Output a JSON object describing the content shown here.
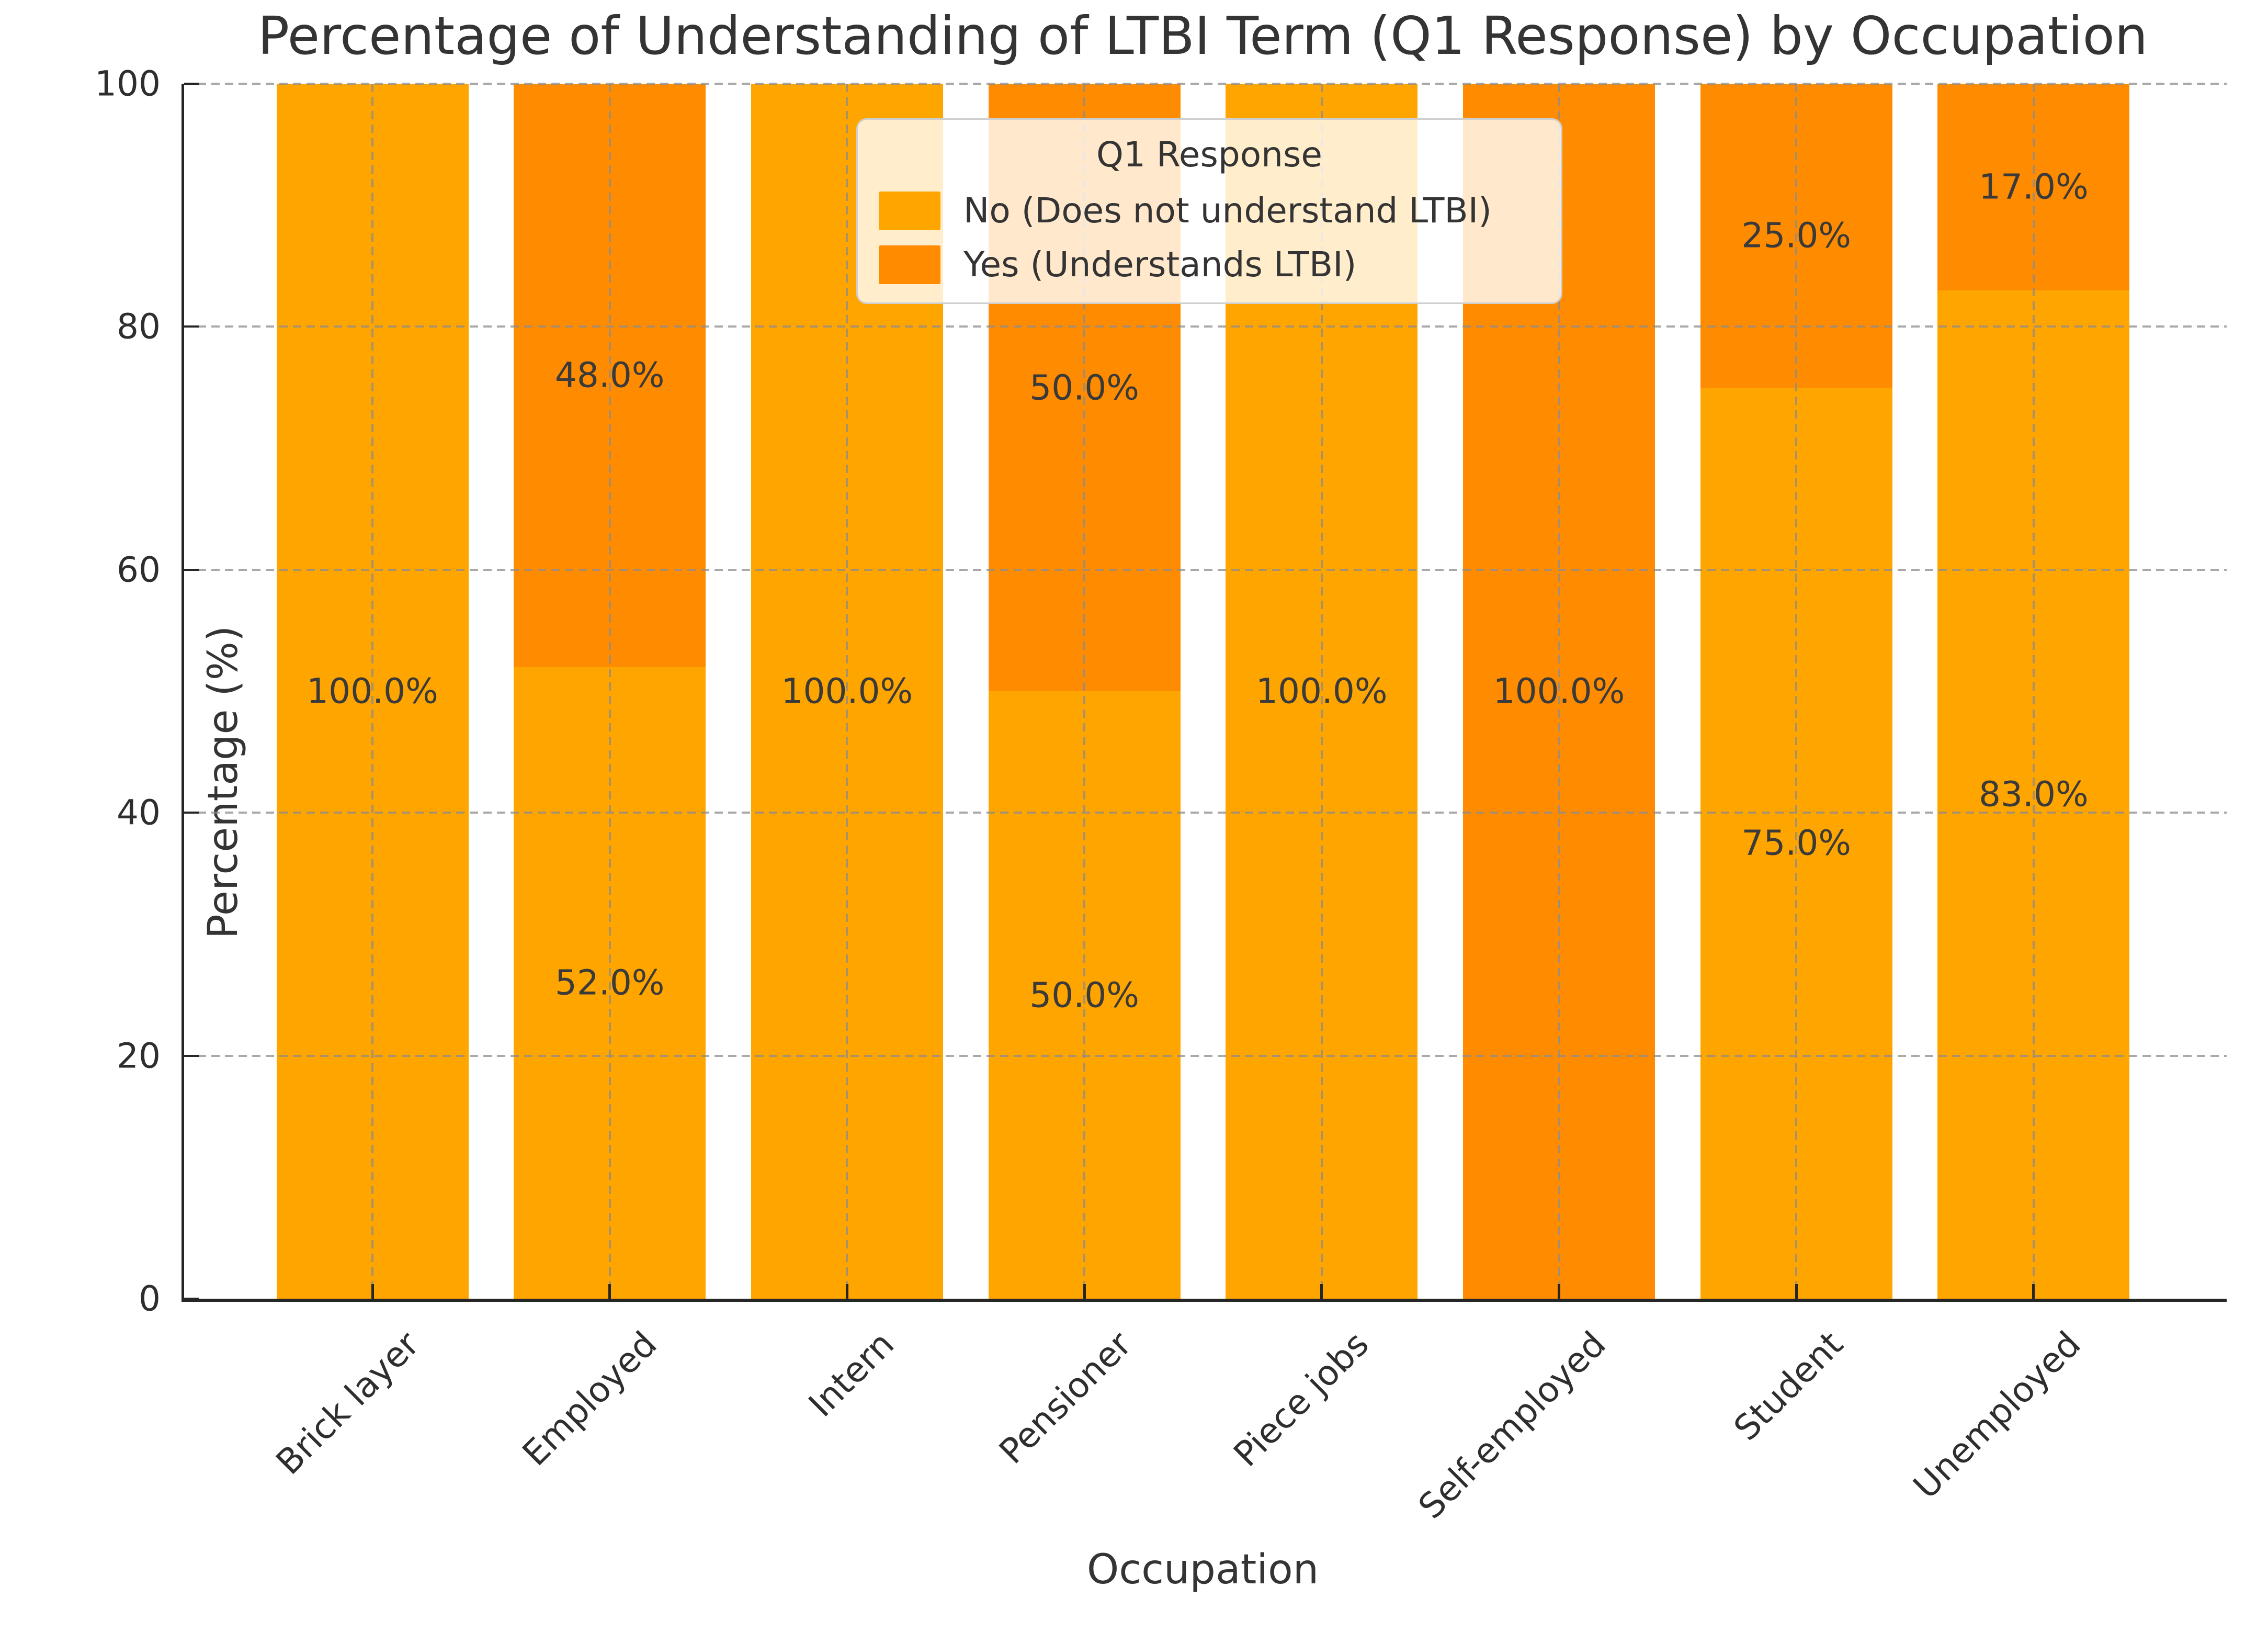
{
  "title": "Percentage of Understanding of LTBI Term (Q1 Response) by Occupation",
  "chart_data": {
    "type": "bar",
    "stacked": true,
    "title": "Percentage of Understanding of LTBI Term (Q1 Response) by Occupation",
    "xlabel": "Occupation",
    "ylabel": "Percentage (%)",
    "ylim": [
      0,
      100
    ],
    "yticks": [
      0,
      20,
      40,
      60,
      80,
      100
    ],
    "grid": "dashed gray, horizontal at yticks and vertical at bar centers, drawn over bars",
    "legend": {
      "title": "Q1 Response",
      "position": "upper center"
    },
    "categories": [
      "Brick layer",
      "Employed",
      "Intern",
      "Pensioner",
      "Piece jobs",
      "Self-employed",
      "Student",
      "Unemployed"
    ],
    "series": [
      {
        "name": "No (Does not understand LTBI)",
        "color": "#FFA500",
        "values": [
          100,
          52,
          100,
          50,
          100,
          0,
          75,
          83
        ]
      },
      {
        "name": "Yes (Understands LTBI)",
        "color": "#FF8C00",
        "values": [
          0,
          48,
          0,
          50,
          0,
          100,
          25,
          17
        ]
      }
    ],
    "bar_labels": {
      "format": "one decimal percent at segment center",
      "shown": [
        "100.0%",
        "52.0%",
        "48.0%",
        "100.0%",
        "50.0%",
        "50.0%",
        "100.0%",
        "100.0%",
        "75.0%",
        "25.0%",
        "83.0%",
        "17.0%"
      ]
    }
  },
  "colors": {
    "no_segment": "#FFA500",
    "yes_segment": "#FF8C00",
    "grid": "#b0b0b0",
    "axis": "#262626",
    "text": "#343434",
    "legend_border": "#cfcfcf",
    "background": "#ffffff"
  }
}
